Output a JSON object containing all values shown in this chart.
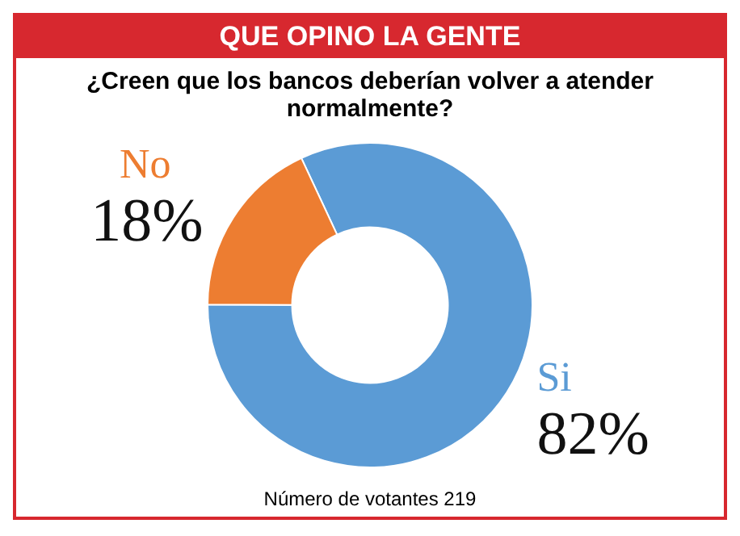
{
  "chart_data": {
    "type": "donut",
    "title": "QUE OPINO LA GENTE",
    "subtitle": "¿Creen que los bancos deberían volver a atender normalmente?",
    "categories": [
      "Si",
      "No"
    ],
    "values": [
      82,
      18
    ],
    "colors": [
      "#5b9bd5",
      "#ed7d31"
    ],
    "value_labels": [
      "82%",
      "18%"
    ],
    "legend": false,
    "annotations": [
      "Número de votantes 219"
    ]
  }
}
